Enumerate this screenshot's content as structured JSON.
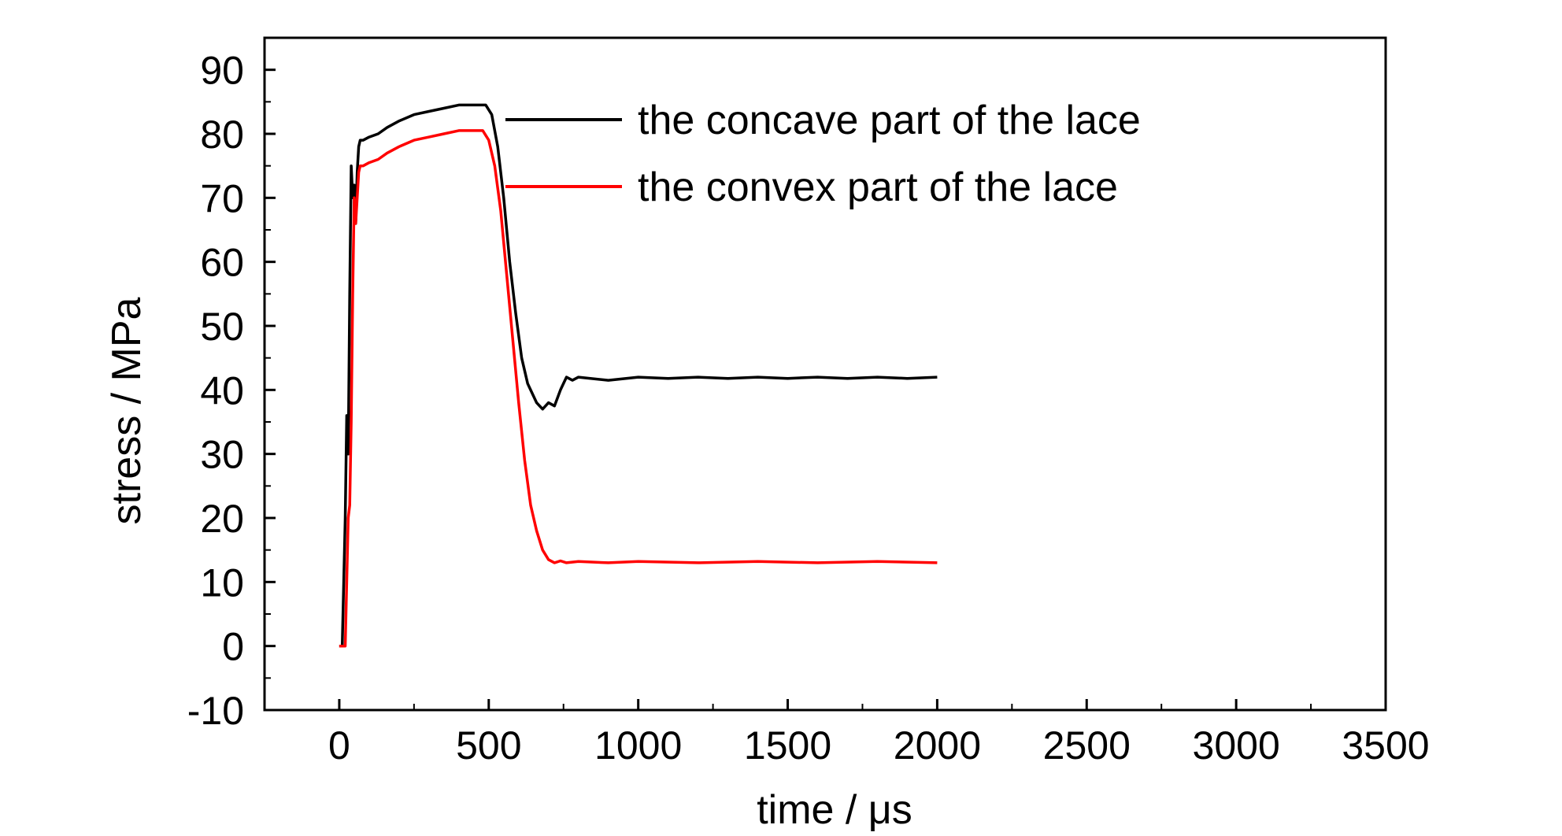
{
  "chart_data": {
    "type": "line",
    "title": "",
    "xlabel": "time / μs",
    "ylabel": "stress / MPa",
    "xlim": [
      -250,
      3500
    ],
    "ylim": [
      -10,
      95
    ],
    "x_ticks": [
      0,
      500,
      1000,
      1500,
      2000,
      2500,
      3000,
      3500
    ],
    "y_ticks": [
      -10,
      0,
      10,
      20,
      30,
      40,
      50,
      60,
      70,
      80,
      90
    ],
    "grid": false,
    "legend_position": "top-center",
    "series": [
      {
        "name": "the concave part of the lace",
        "color": "#000000",
        "x": [
          0,
          10,
          20,
          25,
          30,
          35,
          40,
          45,
          50,
          55,
          60,
          65,
          70,
          80,
          100,
          130,
          160,
          200,
          250,
          300,
          350,
          400,
          450,
          490,
          510,
          530,
          550,
          570,
          590,
          610,
          630,
          650,
          660,
          670,
          680,
          700,
          720,
          740,
          760,
          780,
          800,
          900,
          1000,
          1100,
          1200,
          1300,
          1400,
          1500,
          1600,
          1700,
          1800,
          1900,
          2000
        ],
        "y": [
          0,
          0,
          20,
          36,
          30,
          55,
          75,
          70,
          72,
          66,
          74,
          78,
          79,
          79,
          79.5,
          80,
          81,
          82,
          83,
          83.5,
          84,
          84.5,
          84.5,
          84.5,
          83,
          78,
          70,
          60,
          52,
          45,
          41,
          39,
          38,
          37.5,
          37,
          38,
          37.5,
          40,
          42,
          41.5,
          42,
          41.5,
          42,
          41.8,
          42,
          41.8,
          42,
          41.8,
          42,
          41.8,
          42,
          41.8,
          42
        ]
      },
      {
        "name": "the convex part of the lace",
        "color": "#ff0000",
        "x": [
          0,
          10,
          20,
          30,
          35,
          40,
          45,
          50,
          55,
          60,
          65,
          70,
          80,
          100,
          130,
          160,
          200,
          250,
          300,
          350,
          400,
          450,
          480,
          500,
          520,
          540,
          560,
          580,
          600,
          620,
          640,
          660,
          680,
          700,
          720,
          740,
          760,
          800,
          900,
          1000,
          1200,
          1400,
          1600,
          1800,
          2000
        ],
        "y": [
          0,
          0,
          0,
          20,
          22,
          35,
          55,
          70,
          66,
          70,
          74,
          75,
          75,
          75.5,
          76,
          77,
          78,
          79,
          79.5,
          80,
          80.5,
          80.5,
          80.5,
          79,
          75,
          68,
          58,
          48,
          38,
          29,
          22,
          18,
          15,
          13.5,
          13,
          13.3,
          13,
          13.2,
          13,
          13.2,
          13,
          13.2,
          13,
          13.2,
          13
        ]
      }
    ]
  }
}
